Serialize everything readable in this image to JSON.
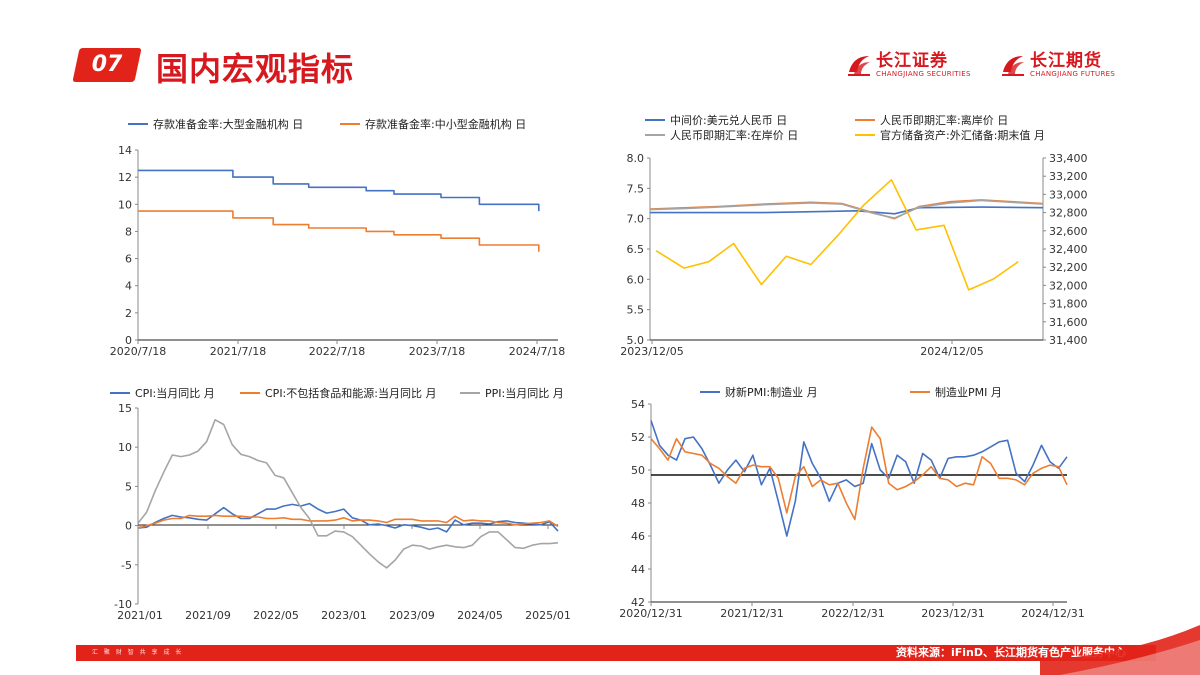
{
  "header": {
    "section_number": "07",
    "title": "国内宏观指标",
    "logo1_cn": "长江证券",
    "logo1_en": "CHANGJIANG SECURITIES",
    "logo2_cn": "长江期货",
    "logo2_en": "CHANGJIANG FUTURES"
  },
  "footer": {
    "left_text": "汇 聚 财 智    共 享 成 长",
    "source": "资料来源：iFinD、长江期货有色产业服务中心"
  },
  "colors": {
    "blue": "#4472c4",
    "orange": "#ed7d31",
    "gray": "#a5a5a5",
    "yellow": "#ffc000",
    "red": "#e2231a"
  },
  "chart_data": [
    {
      "id": "rrr",
      "type": "line",
      "legend": [
        "存款准备金率:大型金融机构 日",
        "存款准备金率:中小型金融机构 日"
      ],
      "x_ticks": [
        "2020/7/18",
        "2021/7/18",
        "2022/7/18",
        "2023/7/18",
        "2024/7/18"
      ],
      "y_ticks": [
        "0",
        "2",
        "4",
        "6",
        "8",
        "10",
        "12",
        "14"
      ],
      "ylim": [
        0,
        14
      ],
      "x_range": [
        2020.55,
        2024.93
      ],
      "series": [
        {
          "name": "存款准备金率:大型金融机构 日",
          "color": "#4472c4",
          "points": [
            [
              2020.55,
              12.5
            ],
            [
              2021.54,
              12.5
            ],
            [
              2021.54,
              12.0
            ],
            [
              2021.96,
              12.0
            ],
            [
              2021.96,
              11.5
            ],
            [
              2022.33,
              11.5
            ],
            [
              2022.33,
              11.25
            ],
            [
              2022.93,
              11.25
            ],
            [
              2022.93,
              11.0
            ],
            [
              2023.22,
              11.0
            ],
            [
              2023.22,
              10.75
            ],
            [
              2023.71,
              10.75
            ],
            [
              2023.71,
              10.5
            ],
            [
              2024.11,
              10.5
            ],
            [
              2024.11,
              10.0
            ],
            [
              2024.73,
              10.0
            ],
            [
              2024.73,
              9.5
            ]
          ]
        },
        {
          "name": "存款准备金率:中小型金融机构 日",
          "color": "#ed7d31",
          "points": [
            [
              2020.55,
              9.5
            ],
            [
              2021.54,
              9.5
            ],
            [
              2021.54,
              9.0
            ],
            [
              2021.96,
              9.0
            ],
            [
              2021.96,
              8.5
            ],
            [
              2022.33,
              8.5
            ],
            [
              2022.33,
              8.25
            ],
            [
              2022.93,
              8.25
            ],
            [
              2022.93,
              8.0
            ],
            [
              2023.22,
              8.0
            ],
            [
              2023.22,
              7.75
            ],
            [
              2023.71,
              7.75
            ],
            [
              2023.71,
              7.5
            ],
            [
              2024.11,
              7.5
            ],
            [
              2024.11,
              7.0
            ],
            [
              2024.73,
              7.0
            ],
            [
              2024.73,
              6.5
            ]
          ]
        }
      ]
    },
    {
      "id": "fx",
      "type": "line",
      "legend": [
        "中间价:美元兑人民币 日",
        "人民币即期汇率:离岸价 日",
        "人民币即期汇率:在岸价 日",
        "官方储备资产:外汇储备:期末值 月"
      ],
      "x_ticks": [
        "2023/12/05",
        "2024/12/05"
      ],
      "y_ticks_left": [
        "5.0",
        "5.5",
        "6.0",
        "6.5",
        "7.0",
        "7.5",
        "8.0"
      ],
      "ylim_left": [
        5.0,
        8.0
      ],
      "y_ticks_right": [
        "31,400",
        "31,600",
        "31,800",
        "32,000",
        "32,200",
        "32,400",
        "32,600",
        "32,800",
        "33,000",
        "33,200",
        "33,400"
      ],
      "ylim_right": [
        31400,
        33400
      ],
      "x_range": [
        2023.93,
        2025.2
      ],
      "series": [
        {
          "name": "中间价:美元兑人民币 日",
          "color": "#4472c4",
          "axis": "left",
          "points": [
            [
              2023.93,
              7.1
            ],
            [
              2024.1,
              7.1
            ],
            [
              2024.3,
              7.1
            ],
            [
              2024.5,
              7.12
            ],
            [
              2024.6,
              7.13
            ],
            [
              2024.72,
              7.08
            ],
            [
              2024.8,
              7.18
            ],
            [
              2025.0,
              7.19
            ],
            [
              2025.2,
              7.18
            ]
          ]
        },
        {
          "name": "人民币即期汇率:离岸价 日",
          "color": "#ed7d31",
          "axis": "left",
          "points": [
            [
              2023.93,
              7.16
            ],
            [
              2024.05,
              7.18
            ],
            [
              2024.15,
              7.2
            ],
            [
              2024.3,
              7.24
            ],
            [
              2024.45,
              7.27
            ],
            [
              2024.55,
              7.25
            ],
            [
              2024.65,
              7.1
            ],
            [
              2024.72,
              7.0
            ],
            [
              2024.8,
              7.2
            ],
            [
              2024.9,
              7.28
            ],
            [
              2025.0,
              7.31
            ],
            [
              2025.1,
              7.28
            ],
            [
              2025.2,
              7.25
            ]
          ]
        },
        {
          "name": "人民币即期汇率:在岸价 日",
          "color": "#a5a5a5",
          "axis": "left",
          "points": [
            [
              2023.93,
              7.15
            ],
            [
              2024.05,
              7.17
            ],
            [
              2024.15,
              7.19
            ],
            [
              2024.3,
              7.23
            ],
            [
              2024.45,
              7.26
            ],
            [
              2024.55,
              7.24
            ],
            [
              2024.65,
              7.09
            ],
            [
              2024.72,
              7.01
            ],
            [
              2024.8,
              7.19
            ],
            [
              2024.9,
              7.26
            ],
            [
              2025.0,
              7.3
            ],
            [
              2025.1,
              7.27
            ],
            [
              2025.2,
              7.24
            ]
          ]
        },
        {
          "name": "官方储备资产:外汇储备:期末值 月",
          "color": "#ffc000",
          "axis": "right",
          "points": [
            [
              2023.95,
              32380
            ],
            [
              2024.04,
              32190
            ],
            [
              2024.12,
              32260
            ],
            [
              2024.2,
              32460
            ],
            [
              2024.29,
              32010
            ],
            [
              2024.37,
              32320
            ],
            [
              2024.45,
              32230
            ],
            [
              2024.54,
              32560
            ],
            [
              2024.62,
              32880
            ],
            [
              2024.71,
              33160
            ],
            [
              2024.79,
              32610
            ],
            [
              2024.88,
              32660
            ],
            [
              2024.96,
              31950
            ],
            [
              2025.04,
              32070
            ],
            [
              2025.12,
              32260
            ]
          ]
        }
      ]
    },
    {
      "id": "cpi",
      "type": "line",
      "legend": [
        "CPI:当月同比 月",
        "CPI:不包括食品和能源:当月同比 月",
        "PPI:当月同比 月"
      ],
      "x_ticks": [
        "2021/01",
        "2021/09",
        "2022/05",
        "2023/01",
        "2023/09",
        "2024/05",
        "2025/01"
      ],
      "y_ticks": [
        "-10",
        "-5",
        "0",
        "5",
        "10",
        "15"
      ],
      "ylim": [
        -10,
        15
      ],
      "x_range": [
        0,
        50
      ],
      "series": [
        {
          "name": "CPI:当月同比 月",
          "color": "#4472c4",
          "values": [
            -0.3,
            -0.2,
            0.4,
            0.9,
            1.3,
            1.1,
            1.0,
            0.8,
            0.7,
            1.5,
            2.3,
            1.5,
            0.9,
            0.9,
            1.5,
            2.1,
            2.1,
            2.5,
            2.7,
            2.5,
            2.8,
            2.1,
            1.6,
            1.8,
            2.1,
            1.0,
            0.7,
            0.1,
            0.2,
            0.0,
            -0.3,
            0.1,
            0.0,
            -0.2,
            -0.5,
            -0.3,
            -0.8,
            0.7,
            0.1,
            0.3,
            0.3,
            0.2,
            0.5,
            0.6,
            0.4,
            0.3,
            0.2,
            0.1,
            0.5,
            -0.7
          ]
        },
        {
          "name": "CPI:不包括食品和能源:当月同比 月",
          "color": "#ed7d31",
          "values": [
            -0.3,
            0.0,
            0.3,
            0.7,
            0.9,
            0.9,
            1.3,
            1.2,
            1.2,
            1.3,
            1.2,
            1.2,
            1.2,
            1.1,
            1.1,
            0.9,
            0.9,
            1.0,
            0.8,
            0.8,
            0.6,
            0.6,
            0.6,
            0.7,
            1.0,
            0.6,
            0.7,
            0.7,
            0.6,
            0.4,
            0.8,
            0.8,
            0.8,
            0.6,
            0.6,
            0.6,
            0.4,
            1.2,
            0.6,
            0.7,
            0.6,
            0.6,
            0.4,
            0.3,
            0.1,
            0.2,
            0.3,
            0.4,
            0.6,
            -0.1
          ]
        },
        {
          "name": "PPI:当月同比 月",
          "color": "#a5a5a5",
          "values": [
            0.3,
            1.7,
            4.4,
            6.8,
            9.0,
            8.8,
            9.0,
            9.5,
            10.7,
            13.5,
            12.9,
            10.3,
            9.1,
            8.8,
            8.3,
            8.0,
            6.4,
            6.1,
            4.2,
            2.3,
            0.9,
            -1.3,
            -1.3,
            -0.7,
            -0.8,
            -1.4,
            -2.5,
            -3.6,
            -4.6,
            -5.4,
            -4.4,
            -3.0,
            -2.5,
            -2.6,
            -3.0,
            -2.7,
            -2.5,
            -2.7,
            -2.8,
            -2.5,
            -1.4,
            -0.8,
            -0.8,
            -1.8,
            -2.8,
            -2.9,
            -2.5,
            -2.3,
            -2.3,
            -2.2
          ]
        }
      ]
    },
    {
      "id": "pmi",
      "type": "line",
      "legend": [
        "财新PMI:制造业 月",
        "制造业PMI 月"
      ],
      "x_ticks": [
        "2020/12/31",
        "2021/12/31",
        "2022/12/31",
        "2023/12/31",
        "2024/12/31"
      ],
      "y_ticks": [
        "42",
        "44",
        "46",
        "48",
        "50",
        "52",
        "54"
      ],
      "ylim": [
        42,
        54
      ],
      "reference_line": 49.7,
      "x_range": [
        0,
        50
      ],
      "series": [
        {
          "name": "财新PMI:制造业 月",
          "color": "#4472c4",
          "values": [
            53.0,
            51.5,
            50.9,
            50.6,
            51.9,
            52.0,
            51.3,
            50.3,
            49.2,
            50.0,
            50.6,
            49.9,
            50.9,
            49.1,
            50.1,
            48.1,
            46.0,
            48.1,
            51.7,
            50.4,
            49.5,
            48.1,
            49.2,
            49.4,
            49.0,
            49.2,
            51.6,
            50.0,
            49.5,
            50.9,
            50.5,
            49.2,
            51.0,
            50.6,
            49.5,
            50.7,
            50.8,
            50.8,
            50.9,
            51.1,
            51.4,
            51.7,
            51.8,
            49.8,
            49.3,
            50.3,
            51.5,
            50.5,
            50.1,
            50.8
          ]
        },
        {
          "name": "制造业PMI 月",
          "color": "#ed7d31",
          "values": [
            51.9,
            51.3,
            50.6,
            51.9,
            51.1,
            51.0,
            50.9,
            50.4,
            50.1,
            49.6,
            49.2,
            50.1,
            50.3,
            50.2,
            50.2,
            49.5,
            47.4,
            49.6,
            50.2,
            49.0,
            49.4,
            49.1,
            49.2,
            48.0,
            47.0,
            50.1,
            52.6,
            51.9,
            49.2,
            48.8,
            49.0,
            49.3,
            49.7,
            50.2,
            49.5,
            49.4,
            49.0,
            49.2,
            49.1,
            50.8,
            50.4,
            49.5,
            49.5,
            49.4,
            49.1,
            49.8,
            50.1,
            50.3,
            50.2,
            49.1
          ]
        }
      ]
    }
  ]
}
